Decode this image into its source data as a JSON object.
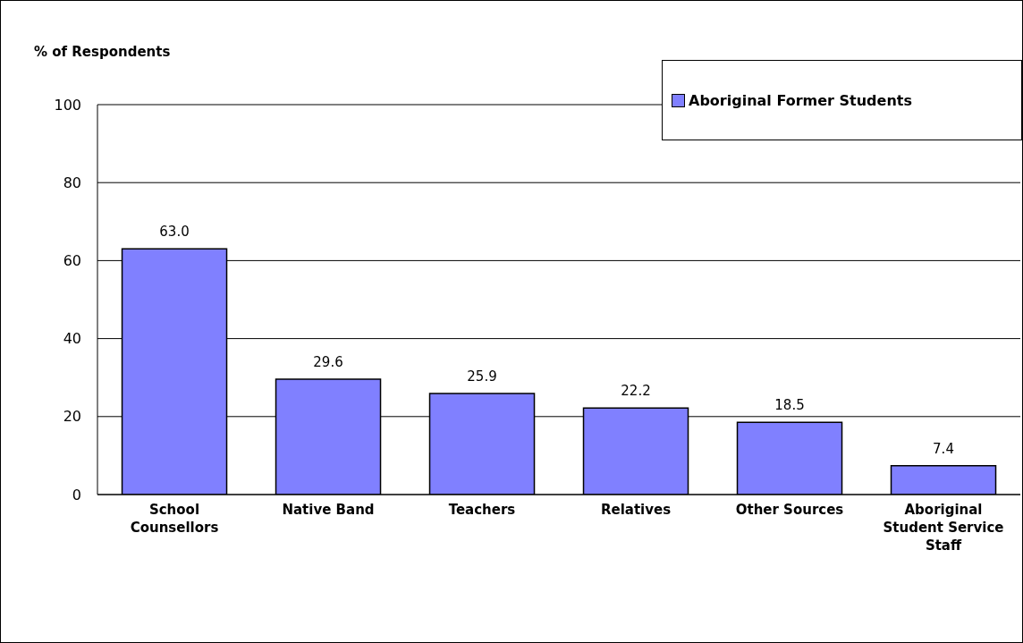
{
  "chart_data": {
    "type": "bar",
    "ylabel": "% of Respondents",
    "categories": [
      "School Counsellors",
      "Native Band",
      "Teachers",
      "Relatives",
      "Other Sources",
      "Aboriginal Student Service Staff"
    ],
    "series": [
      {
        "name": "Aboriginal Former Students",
        "color": "#8080ff",
        "values": [
          63.0,
          29.6,
          25.9,
          22.2,
          18.5,
          7.4
        ],
        "value_labels": [
          "63.0",
          "29.6",
          "25.9",
          "22.2",
          "18.5",
          "7.4"
        ]
      }
    ],
    "ylim": [
      0,
      100
    ],
    "yticks": [
      0,
      20,
      40,
      60,
      80,
      100
    ],
    "grid": "y",
    "legend": "top right"
  }
}
